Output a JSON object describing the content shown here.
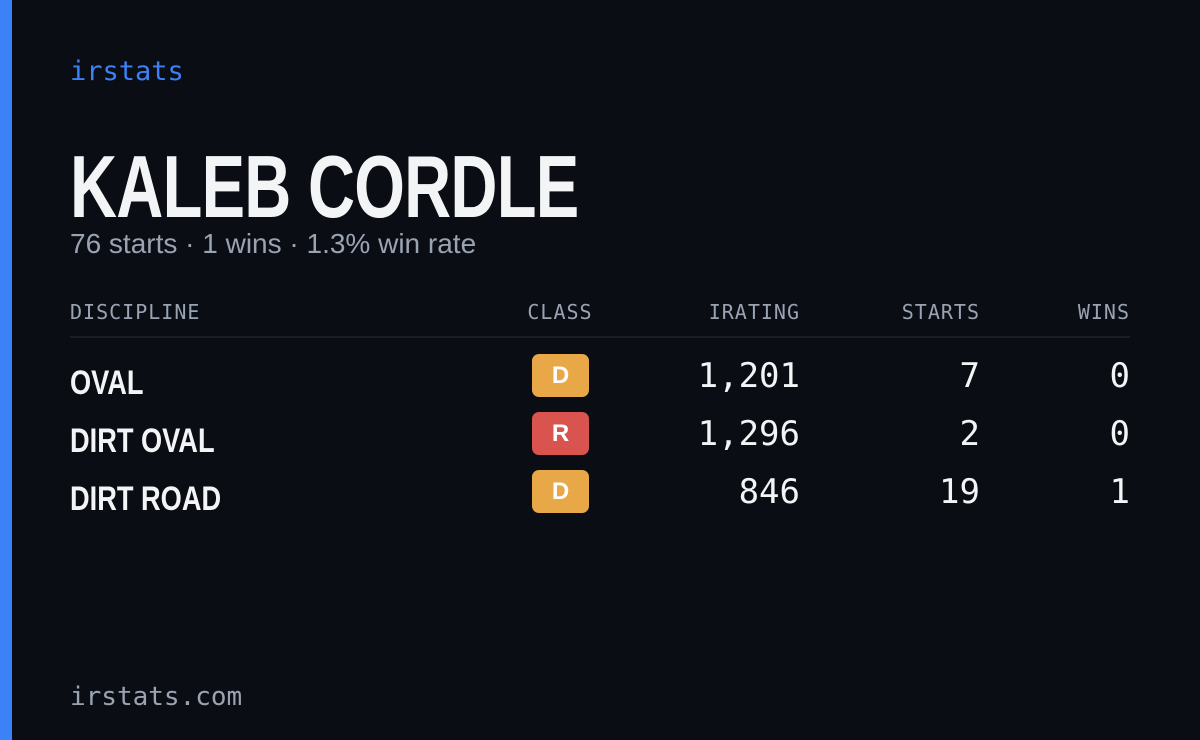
{
  "brand": "irstats",
  "name": "KALEB CORDLE",
  "summary": "76 starts · 1 wins · 1.3% win rate",
  "table": {
    "headers": [
      "DISCIPLINE",
      "CLASS",
      "IRATING",
      "STARTS",
      "WINS"
    ],
    "rows": [
      [
        "OVAL",
        "D",
        "1,201",
        "7",
        "0"
      ],
      [
        "DIRT OVAL",
        "R",
        "1,296",
        "2",
        "0"
      ],
      [
        "DIRT ROAD",
        "D",
        "846",
        "19",
        "1"
      ]
    ],
    "class_colors": [
      "#e8a848",
      "#d9534f",
      "#e8a848"
    ]
  },
  "footer": "irstats.com"
}
